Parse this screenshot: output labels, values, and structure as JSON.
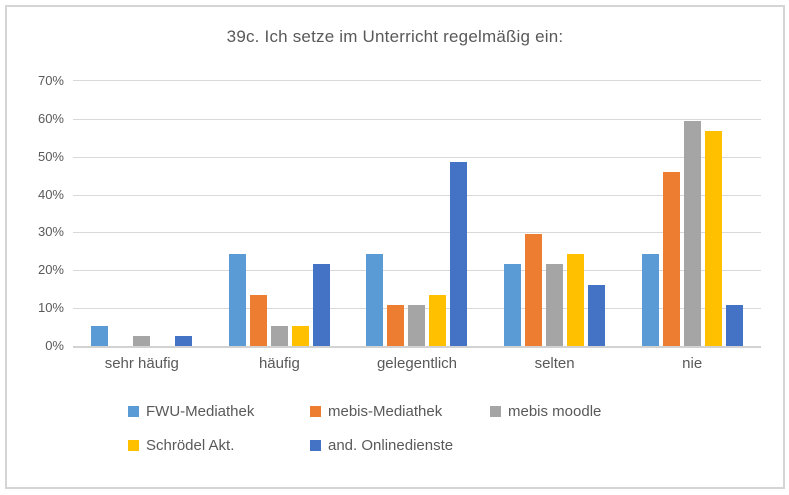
{
  "chart_data": {
    "type": "bar",
    "title": "39c. Ich setze im Unterricht regelmäßig ein:",
    "categories": [
      "sehr häufig",
      "häufig",
      "gelegentlich",
      "selten",
      "nie"
    ],
    "series": [
      {
        "name": "FWU-Mediathek",
        "color": "#5B9BD5",
        "values": [
          5.4,
          24.3,
          24.3,
          21.6,
          24.3
        ]
      },
      {
        "name": "mebis-Mediathek",
        "color": "#ED7D31",
        "values": [
          0,
          13.5,
          10.8,
          29.7,
          45.9
        ]
      },
      {
        "name": "mebis moodle",
        "color": "#A5A5A5",
        "values": [
          2.7,
          5.4,
          10.8,
          21.6,
          59.5
        ]
      },
      {
        "name": "Schrödel Akt.",
        "color": "#FFC000",
        "values": [
          0,
          5.4,
          13.5,
          24.3,
          56.8
        ]
      },
      {
        "name": "and. Onlinedienste",
        "color": "#4472C4",
        "values": [
          2.7,
          21.6,
          48.6,
          16.2,
          10.8
        ]
      }
    ],
    "xlabel": "",
    "ylabel": "",
    "ylim": [
      0,
      70
    ],
    "ytick_labels": [
      "0%",
      "10%",
      "20%",
      "30%",
      "40%",
      "50%",
      "60%",
      "70%"
    ],
    "grid": true,
    "legend_position": "bottom",
    "legend_rows": [
      [
        0,
        1,
        2
      ],
      [
        3,
        4
      ]
    ]
  },
  "style": {
    "gridline_color": "#D9D9D9",
    "axis_line_color": "#D2D2D2",
    "text_color": "#595959",
    "frame_border_color": "#D5D5D5",
    "background_color": "#FFFFFF"
  }
}
